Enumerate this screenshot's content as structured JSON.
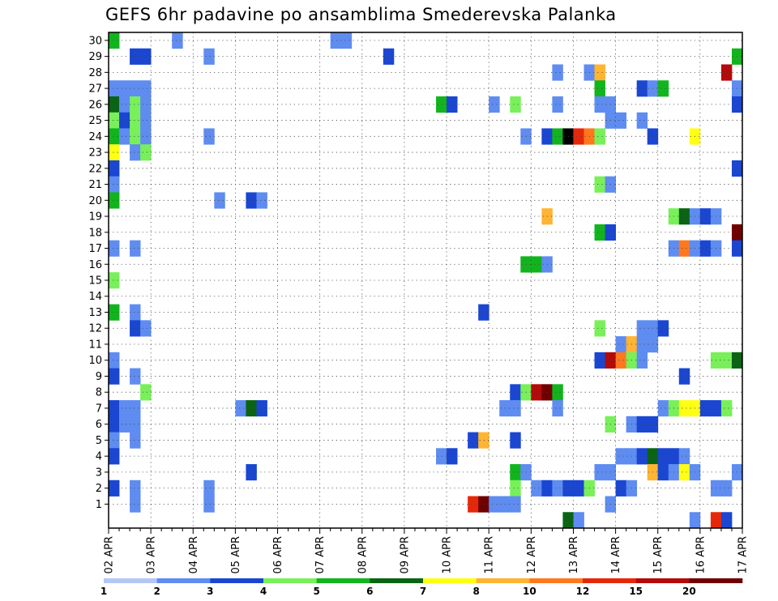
{
  "chart_data": {
    "type": "heatmap",
    "title": "GEFS 6hr padavine po ansamblima Smederevska Palanka",
    "xlabel": "",
    "ylabel": "",
    "x_ticks": [
      "02 APR",
      "03 APR",
      "04 APR",
      "05 APR",
      "06 APR",
      "07 APR",
      "08 APR",
      "09 APR",
      "10 APR",
      "11 APR",
      "12 APR",
      "13 APR",
      "14 APR",
      "15 APR",
      "16 APR",
      "17 APR"
    ],
    "y_ticks": [
      "1",
      "2",
      "3",
      "4",
      "5",
      "6",
      "7",
      "8",
      "9",
      "10",
      "11",
      "12",
      "13",
      "14",
      "15",
      "16",
      "17",
      "18",
      "19",
      "20",
      "21",
      "22",
      "23",
      "24",
      "25",
      "26",
      "27",
      "28",
      "29",
      "30"
    ],
    "xlim": [
      0,
      60
    ],
    "ylim": [
      0,
      30
    ],
    "grid": true,
    "levels": [
      "1",
      "2",
      "3",
      "4",
      "5",
      "6",
      "7",
      "8",
      "10",
      "12",
      "15",
      "20"
    ],
    "level_colors": [
      "#b4c8f5",
      "#5f8cf0",
      "#1a46d2",
      "#78f05a",
      "#12b41e",
      "#0a6414",
      "#ffff14",
      "#ffb432",
      "#ff781e",
      "#e6280a",
      "#b40a0a",
      "#700000"
    ],
    "cells": [
      [
        0,
        30,
        4
      ],
      [
        6,
        30,
        1
      ],
      [
        21,
        30,
        1
      ],
      [
        22,
        30,
        1
      ],
      [
        2,
        29,
        2
      ],
      [
        3,
        29,
        2
      ],
      [
        9,
        29,
        1
      ],
      [
        26,
        29,
        2
      ],
      [
        59,
        29,
        4
      ],
      [
        42,
        28,
        1
      ],
      [
        45,
        28,
        1
      ],
      [
        46,
        28,
        7
      ],
      [
        58,
        28,
        10
      ],
      [
        0,
        27,
        1
      ],
      [
        1,
        27,
        1
      ],
      [
        2,
        27,
        1
      ],
      [
        3,
        27,
        1
      ],
      [
        46,
        27,
        4
      ],
      [
        50,
        27,
        2
      ],
      [
        51,
        27,
        1
      ],
      [
        52,
        27,
        4
      ],
      [
        59,
        27,
        1
      ],
      [
        0,
        26,
        5
      ],
      [
        1,
        26,
        1
      ],
      [
        2,
        26,
        3
      ],
      [
        3,
        26,
        1
      ],
      [
        31,
        26,
        4
      ],
      [
        32,
        26,
        2
      ],
      [
        36,
        26,
        1
      ],
      [
        38,
        26,
        3
      ],
      [
        42,
        26,
        1
      ],
      [
        46,
        26,
        1
      ],
      [
        47,
        26,
        1
      ],
      [
        59,
        26,
        2
      ],
      [
        0,
        25,
        3
      ],
      [
        1,
        25,
        2
      ],
      [
        2,
        25,
        3
      ],
      [
        3,
        25,
        1
      ],
      [
        47,
        25,
        1
      ],
      [
        48,
        25,
        1
      ],
      [
        50,
        25,
        1
      ],
      [
        0,
        24,
        4
      ],
      [
        1,
        24,
        1
      ],
      [
        2,
        24,
        3
      ],
      [
        3,
        24,
        1
      ],
      [
        9,
        24,
        1
      ],
      [
        39,
        24,
        1
      ],
      [
        41,
        24,
        2
      ],
      [
        42,
        24,
        4
      ],
      [
        43,
        24,
        12
      ],
      [
        44,
        24,
        9
      ],
      [
        45,
        24,
        8
      ],
      [
        46,
        24,
        3
      ],
      [
        51,
        24,
        2
      ],
      [
        55,
        24,
        6
      ],
      [
        0,
        23,
        6
      ],
      [
        2,
        23,
        1
      ],
      [
        3,
        23,
        3
      ],
      [
        0,
        22,
        2
      ],
      [
        59,
        22,
        2
      ],
      [
        0,
        21,
        1
      ],
      [
        46,
        21,
        3
      ],
      [
        47,
        21,
        1
      ],
      [
        0,
        20,
        4
      ],
      [
        10,
        20,
        1
      ],
      [
        13,
        20,
        2
      ],
      [
        14,
        20,
        1
      ],
      [
        41,
        19,
        7
      ],
      [
        53,
        19,
        3
      ],
      [
        54,
        19,
        5
      ],
      [
        55,
        19,
        1
      ],
      [
        56,
        19,
        2
      ],
      [
        57,
        19,
        1
      ],
      [
        46,
        18,
        4
      ],
      [
        47,
        18,
        2
      ],
      [
        59,
        18,
        11
      ],
      [
        0,
        17,
        1
      ],
      [
        2,
        17,
        1
      ],
      [
        53,
        17,
        1
      ],
      [
        54,
        17,
        8
      ],
      [
        55,
        17,
        1
      ],
      [
        56,
        17,
        2
      ],
      [
        57,
        17,
        1
      ],
      [
        59,
        17,
        2
      ],
      [
        39,
        16,
        4
      ],
      [
        40,
        16,
        4
      ],
      [
        41,
        16,
        1
      ],
      [
        0,
        15,
        3
      ],
      [
        0,
        13,
        4
      ],
      [
        2,
        13,
        1
      ],
      [
        35,
        13,
        2
      ],
      [
        2,
        12,
        2
      ],
      [
        3,
        12,
        1
      ],
      [
        46,
        12,
        3
      ],
      [
        50,
        12,
        1
      ],
      [
        51,
        12,
        1
      ],
      [
        52,
        12,
        2
      ],
      [
        48,
        11,
        1
      ],
      [
        49,
        11,
        7
      ],
      [
        50,
        11,
        1
      ],
      [
        51,
        11,
        1
      ],
      [
        0,
        10,
        1
      ],
      [
        46,
        10,
        2
      ],
      [
        47,
        10,
        10
      ],
      [
        48,
        10,
        8
      ],
      [
        49,
        10,
        3
      ],
      [
        50,
        10,
        1
      ],
      [
        57,
        10,
        3
      ],
      [
        58,
        10,
        3
      ],
      [
        59,
        10,
        5
      ],
      [
        0,
        9,
        2
      ],
      [
        2,
        9,
        1
      ],
      [
        54,
        9,
        2
      ],
      [
        3,
        8,
        3
      ],
      [
        38,
        8,
        2
      ],
      [
        39,
        8,
        3
      ],
      [
        40,
        8,
        10
      ],
      [
        41,
        8,
        11
      ],
      [
        42,
        8,
        4
      ],
      [
        0,
        7,
        2
      ],
      [
        1,
        7,
        1
      ],
      [
        2,
        7,
        1
      ],
      [
        12,
        7,
        1
      ],
      [
        13,
        7,
        5
      ],
      [
        14,
        7,
        2
      ],
      [
        37,
        7,
        1
      ],
      [
        38,
        7,
        1
      ],
      [
        42,
        7,
        1
      ],
      [
        52,
        7,
        1
      ],
      [
        53,
        7,
        3
      ],
      [
        54,
        7,
        6
      ],
      [
        55,
        7,
        6
      ],
      [
        56,
        7,
        2
      ],
      [
        57,
        7,
        2
      ],
      [
        58,
        7,
        3
      ],
      [
        0,
        6,
        2
      ],
      [
        1,
        6,
        1
      ],
      [
        2,
        6,
        1
      ],
      [
        47,
        6,
        3
      ],
      [
        49,
        6,
        1
      ],
      [
        50,
        6,
        2
      ],
      [
        51,
        6,
        2
      ],
      [
        0,
        5,
        1
      ],
      [
        2,
        5,
        1
      ],
      [
        34,
        5,
        2
      ],
      [
        35,
        5,
        7
      ],
      [
        38,
        5,
        2
      ],
      [
        0,
        4,
        2
      ],
      [
        31,
        4,
        1
      ],
      [
        32,
        4,
        2
      ],
      [
        48,
        4,
        1
      ],
      [
        49,
        4,
        1
      ],
      [
        50,
        4,
        2
      ],
      [
        51,
        4,
        5
      ],
      [
        52,
        4,
        2
      ],
      [
        53,
        4,
        2
      ],
      [
        54,
        4,
        1
      ],
      [
        13,
        3,
        2
      ],
      [
        38,
        3,
        4
      ],
      [
        39,
        3,
        1
      ],
      [
        46,
        3,
        1
      ],
      [
        47,
        3,
        1
      ],
      [
        51,
        3,
        7
      ],
      [
        52,
        3,
        2
      ],
      [
        53,
        3,
        1
      ],
      [
        54,
        3,
        6
      ],
      [
        55,
        3,
        1
      ],
      [
        59,
        3,
        1
      ],
      [
        0,
        2,
        2
      ],
      [
        2,
        2,
        1
      ],
      [
        9,
        2,
        1
      ],
      [
        38,
        2,
        3
      ],
      [
        40,
        2,
        1
      ],
      [
        41,
        2,
        2
      ],
      [
        42,
        2,
        1
      ],
      [
        43,
        2,
        2
      ],
      [
        44,
        2,
        2
      ],
      [
        45,
        2,
        3
      ],
      [
        48,
        2,
        2
      ],
      [
        49,
        2,
        1
      ],
      [
        57,
        2,
        1
      ],
      [
        58,
        2,
        1
      ],
      [
        2,
        1,
        1
      ],
      [
        9,
        1,
        1
      ],
      [
        34,
        1,
        9
      ],
      [
        35,
        1,
        11
      ],
      [
        36,
        1,
        1
      ],
      [
        37,
        1,
        1
      ],
      [
        38,
        1,
        1
      ],
      [
        47,
        1,
        1
      ],
      [
        43,
        0,
        5
      ],
      [
        44,
        0,
        1
      ],
      [
        55,
        0,
        1
      ],
      [
        57,
        0,
        9
      ],
      [
        58,
        0,
        2
      ]
    ]
  }
}
